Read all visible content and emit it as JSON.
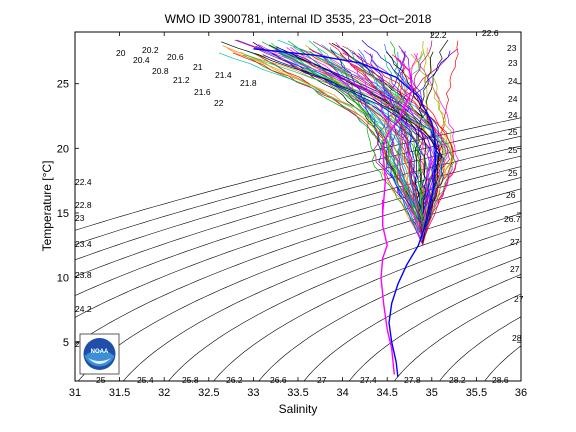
{
  "chart_data": {
    "type": "line",
    "title": "WMO ID 3900781, internal ID 3535, 23−Oct−2018",
    "xlabel": "Salinity",
    "ylabel": "Temperature [°C]",
    "xlim": [
      31,
      36
    ],
    "ylim": [
      2,
      29
    ],
    "xticks": [
      "31",
      "31.5",
      "32",
      "32.5",
      "33",
      "33.5",
      "34",
      "34.5",
      "35",
      "35.5",
      "36"
    ],
    "yticks": [
      "5",
      "10",
      "15",
      "20",
      "25"
    ],
    "ytick_values": [
      5,
      10,
      15,
      20,
      25
    ],
    "grid": false,
    "background_contours": "density (sigma) isopycnals, black",
    "contour_labels_top": [
      "20",
      "20.2",
      "20.4",
      "20.6",
      "20.8",
      "21",
      "21.2",
      "21.4",
      "21.6",
      "21.8",
      "22"
    ],
    "contour_labels_top_right": [
      "22.2",
      "22.6",
      "23",
      "23",
      "24",
      "24",
      "24",
      "25",
      "25",
      "25",
      "26",
      "26.7",
      "27",
      "27",
      "27",
      "28"
    ],
    "contour_labels_left": [
      "22.4",
      "22.8",
      "23",
      "23.4",
      "23.8",
      "24.2",
      "24.6"
    ],
    "contour_labels_bottom": [
      "25",
      "25.4",
      "25.8",
      "26.2",
      "26.6",
      "27",
      "27.4",
      "27.8",
      "28.2",
      "28.6"
    ],
    "series": [
      {
        "color": "#0000ff",
        "points": [
          [
            34.62,
            2.3
          ],
          [
            34.6,
            3.5
          ],
          [
            34.55,
            5
          ],
          [
            34.52,
            6.5
          ],
          [
            34.55,
            8
          ],
          [
            34.62,
            9.5
          ],
          [
            34.72,
            11
          ],
          [
            34.85,
            12.5
          ],
          [
            34.95,
            14.5
          ],
          [
            35.02,
            17
          ],
          [
            35.05,
            20
          ],
          [
            35.0,
            22
          ],
          [
            34.85,
            24
          ],
          [
            34.6,
            25.5
          ],
          [
            34.2,
            26.6
          ],
          [
            33.7,
            27.2
          ],
          [
            33.0,
            27.7
          ]
        ]
      },
      {
        "color": "#ff00ff",
        "points": [
          [
            34.45,
            15
          ],
          [
            34.48,
            17.5
          ],
          [
            34.45,
            20
          ],
          [
            34.5,
            21
          ],
          [
            34.65,
            22.5
          ],
          [
            34.78,
            24.5
          ],
          [
            34.75,
            26
          ],
          [
            34.6,
            27
          ]
        ]
      },
      {
        "color": "#ff00ff",
        "points": [
          [
            34.58,
            2.5
          ],
          [
            34.55,
            4.5
          ],
          [
            34.5,
            6
          ],
          [
            34.46,
            8
          ],
          [
            34.43,
            10
          ],
          [
            34.45,
            11.5
          ],
          [
            34.5,
            12.5
          ],
          [
            34.45,
            14
          ],
          [
            34.45,
            16
          ]
        ]
      }
    ]
  },
  "logo": {
    "text": "NOAA"
  }
}
